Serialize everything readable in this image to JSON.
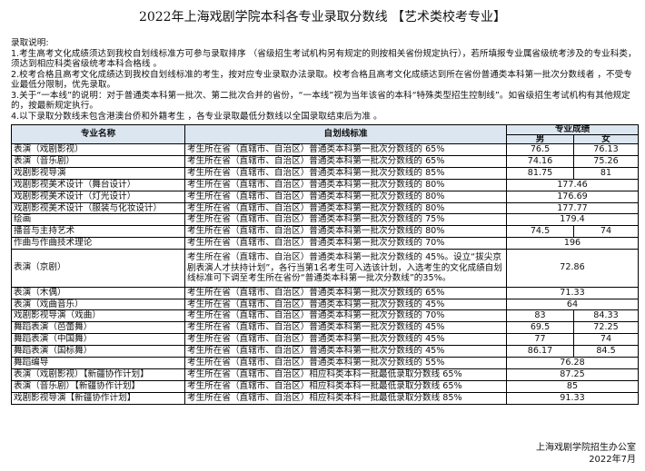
{
  "title": "2022年上海戏剧学院本科各专业录取分数线 【艺术类校考专业】",
  "notes": {
    "heading": "录取说明:",
    "items": [
      "1.考生高考文化成绩须达到我校自划线标准方可参与录取排序 （省级招生考试机构另有规定的则按相关省份规定执行），若所填报专业属省级统考涉及的专业科类，须达到相应科类省级统考本科合格线 。",
      "2.校考合格且高考文化成绩达到我校自划线标准的考生，按对应专业录取办法录取。校考合格且高考文化成绩达到所在省份普通类本科第一批次分数线者 ，不受专业最低分限制，优先录取。",
      "3.关于“一本线”的说明：对于普通类本科第一批次、第二批次合并的省份，“一本线”视为当年该省的本科“特殊类型招生控制线”。如省级招生考试机构有其他规定的，按最新规定执行。",
      "4.以下录取分数线未包含港澳台侨和外籍考生 ，各专业录取最低分数线以全国录取结束后为准 。"
    ]
  },
  "table": {
    "headers": {
      "major": "专业名称",
      "standard": "自划线标准",
      "score": "专业成绩",
      "male": "男",
      "female": "女"
    },
    "header_bg": "#dce6f1",
    "rows": [
      {
        "major": "表演（戏剧影视）",
        "standard": "考生所在省（直辖市、自治区）普通类本科第一批次分数线的 65%",
        "male": "76.5",
        "female": "76.13"
      },
      {
        "major": "表演（音乐剧）",
        "standard": "考生所在省（直辖市、自治区）普通类本科第一批次分数线的 65%",
        "male": "74.16",
        "female": "75.26"
      },
      {
        "major": "戏剧影视导演",
        "standard": "考生所在省（直辖市、自治区）普通类本科第一批次分数线的 85%",
        "male": "81.75",
        "female": "81"
      },
      {
        "major": "戏剧影视美术设计（舞台设计）",
        "standard": "考生所在省（直辖市、自治区）普通类本科第一批次分数线的 80%",
        "score": "177.46"
      },
      {
        "major": "戏剧影视美术设计（灯光设计）",
        "standard": "考生所在省（直辖市、自治区）普通类本科第一批次分数线的 80%",
        "score": "176.69"
      },
      {
        "major": "戏剧影视美术设计（服装与化妆设计）",
        "standard": "考生所在省（直辖市、自治区）普通类本科第一批次分数线的 80%",
        "score": "177.77"
      },
      {
        "major": "绘画",
        "standard": "考生所在省（直辖市、自治区）普通类本科第一批次分数线的 75%",
        "score": "179.4"
      },
      {
        "major": "播音与主持艺术",
        "standard": "考生所在省（直辖市、自治区）普通类本科第一批次分数线的 80%",
        "male": "74.5",
        "female": "74"
      },
      {
        "major": "作曲与作曲技术理论",
        "standard": "考生所在省（直辖市、自治区）普通类本科第一批次分数线的 70%",
        "score": "196"
      },
      {
        "major": "表演（京剧）",
        "standard": "考生所在省（直辖市、自治区）普通类本科第一批次分数线的 45%。设立“拔尖京剧表演人才扶持计划”，各行当第1名考生可入选该计划，入选考生的文化成绩自划线标准可下调至考生所在省份“普通类本科第一批次分数线”的35%。",
        "score": "72.86"
      },
      {
        "major": "表演（木偶）",
        "standard": "考生所在省（直辖市、自治区）普通类本科第一批次分数线的 65%",
        "score": "71.33"
      },
      {
        "major": "表演（戏曲音乐）",
        "standard": "考生所在省（直辖市、自治区）普通类本科第一批次分数线的 45%",
        "score": "64"
      },
      {
        "major": "戏剧影视导演（戏曲）",
        "standard": "考生所在省（直辖市、自治区）普通类本科第一批次分数线的 70%",
        "male": "83",
        "female": "84.33"
      },
      {
        "major": "舞蹈表演（芭蕾舞）",
        "standard": "考生所在省（直辖市、自治区）普通类本科第一批次分数线的 45%",
        "male": "69.5",
        "female": "72.25"
      },
      {
        "major": "舞蹈表演（中国舞）",
        "standard": "考生所在省（直辖市、自治区）普通类本科第一批次分数线的 45%",
        "male": "77",
        "female": "74"
      },
      {
        "major": "舞蹈表演（国标舞）",
        "standard": "考生所在省（直辖市、自治区）普通类本科第一批次分数线的 45%",
        "male": "86.17",
        "female": "84.5"
      },
      {
        "major": "舞蹈编导",
        "standard": "考生所在省（直辖市、自治区）普通类本科第一批次分数线的 55%",
        "score": "76.28"
      },
      {
        "major": "表演（戏剧影视）【新疆协作计划】",
        "standard": "考生所在省（直辖市、自治区）相应科类本科一批最低录取分数线 65%",
        "score": "87.25"
      },
      {
        "major": "表演（音乐剧）【新疆协作计划】",
        "standard": "考生所在省（直辖市、自治区）相应科类本科一批最低录取分数线 65%",
        "score": "85"
      },
      {
        "major": "戏剧影视导演【新疆协作计划】",
        "standard": "考生所在省（直辖市、自治区）相应科类本科一批最低录取分数线 85%",
        "score": "91.33"
      }
    ]
  },
  "footer": {
    "org": "上海戏剧学院招生办公室",
    "date": "2022年7月"
  }
}
